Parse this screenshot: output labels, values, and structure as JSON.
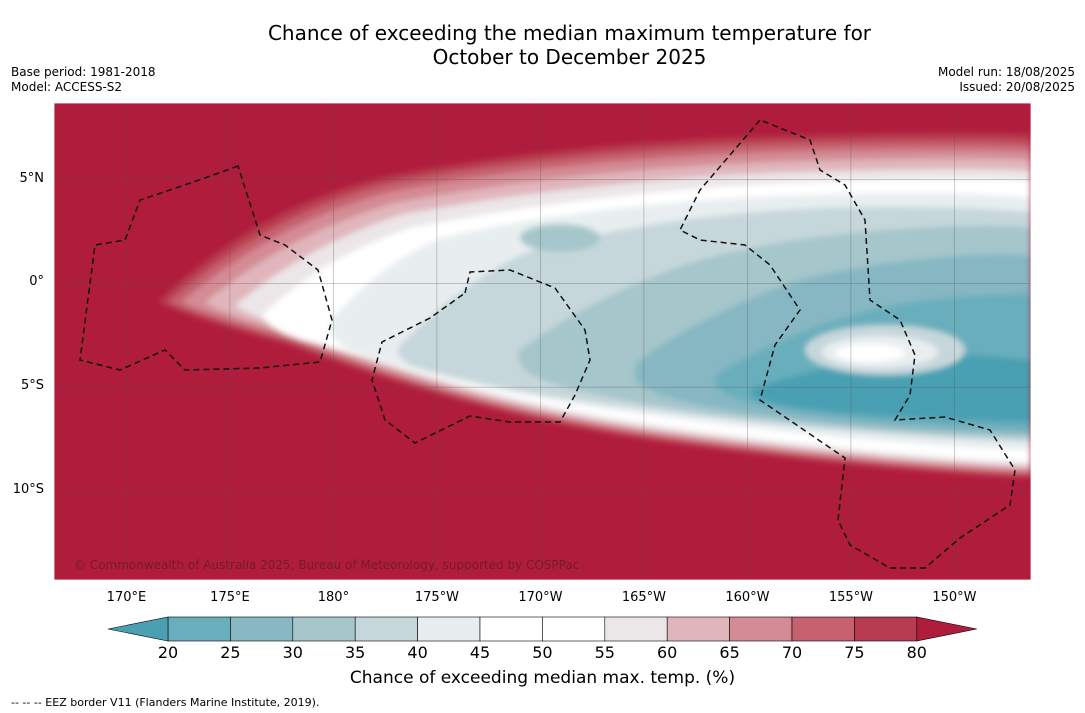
{
  "title": {
    "line1": "Chance of exceeding the median maximum temperature for",
    "line2": "October to December 2025"
  },
  "meta_left": {
    "base_period": "Base period: 1981-2018",
    "model": "Model: ACCESS-S2"
  },
  "meta_right": {
    "model_run": "Model run: 18/08/2025",
    "issued": "Issued: 20/08/2025"
  },
  "map": {
    "lon_labels": [
      "170°E",
      "175°E",
      "180°",
      "175°W",
      "170°W",
      "165°W",
      "160°W",
      "155°W",
      "150°W"
    ],
    "lon_values": [
      170,
      175,
      180,
      185,
      190,
      195,
      200,
      205,
      210
    ],
    "lat_labels": [
      "5°N",
      "0°",
      "5°S",
      "10°S"
    ],
    "lat_values": [
      5,
      0,
      -5,
      -10
    ],
    "lon_range": [
      166.5,
      213.7
    ],
    "lat_range": [
      -14.3,
      8.7
    ],
    "copyright": "© Commonwealth of Australia 2025, Bureau of Meteorology, supported by COSPPac"
  },
  "colorbar": {
    "ticks": [
      "20",
      "25",
      "30",
      "35",
      "40",
      "45",
      "50",
      "55",
      "60",
      "65",
      "70",
      "75",
      "80"
    ],
    "colors": [
      "#69aebc",
      "#86b7c3",
      "#a5c6cb",
      "#c6d7db",
      "#e8eef0",
      "#ffffff",
      "#ffffff",
      "#ebe6e8",
      "#e0b6bc",
      "#d48b94",
      "#c66270",
      "#b83c50"
    ],
    "under_color": "#4aa0b2",
    "over_color": "#b01c3c",
    "label": "Chance of exceeding median max. temp. (%)"
  },
  "legend": {
    "eez": "-- -- -- EEZ border V11 (Flanders Marine Institute, 2019)."
  }
}
